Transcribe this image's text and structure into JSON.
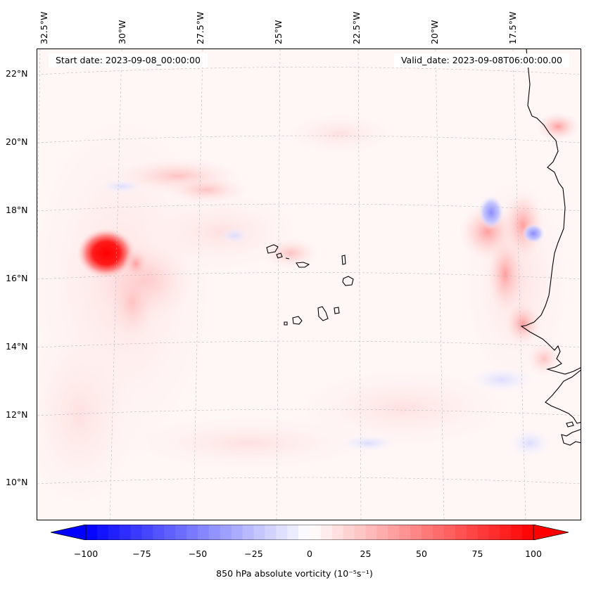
{
  "header": {
    "start_date": "Start date: 2023-09-08_00:00:00",
    "valid_date": "Valid_date: 2023-09-08T06:00:00.00"
  },
  "longitude_labels": [
    "32.5°W",
    "30°W",
    "27.5°W",
    "25°W",
    "22.5°W",
    "20°W",
    "17.5°W"
  ],
  "latitude_labels": [
    "22°N",
    "20°N",
    "18°N",
    "16°N",
    "14°N",
    "12°N",
    "10°N"
  ],
  "colorbar": {
    "ticks": [
      "−100",
      "−75",
      "−50",
      "−25",
      "0",
      "25",
      "50",
      "75",
      "100"
    ],
    "label": "850 hPa absolute vorticity (10⁻⁵s⁻¹)",
    "min": -100,
    "max": 100,
    "colors": {
      "negative": "#0000ff",
      "zero": "#ffffff",
      "positive": "#ff0000"
    }
  },
  "map": {
    "field": "850 hPa absolute vorticity",
    "features": [
      "cyclone-vortex-max",
      "cape-verde-islands",
      "west-africa-coastline"
    ]
  }
}
